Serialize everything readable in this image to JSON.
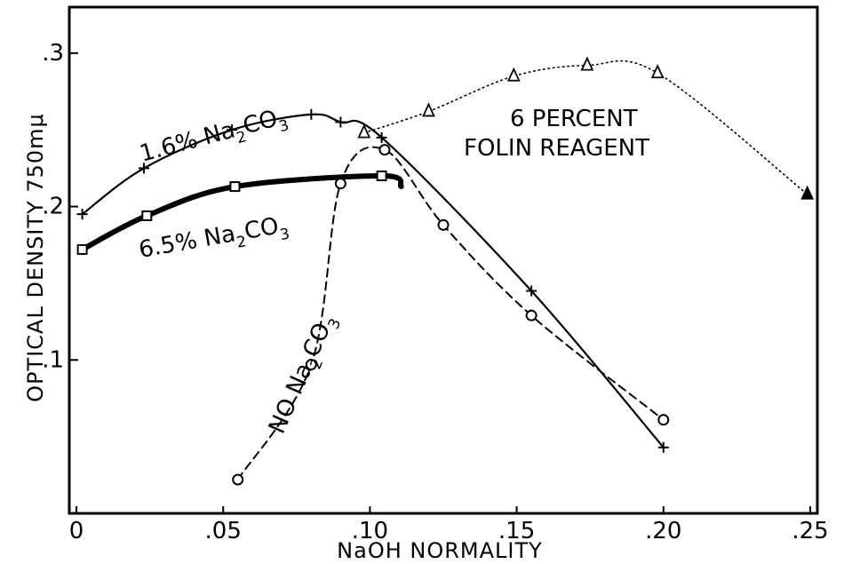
{
  "chart_data": {
    "type": "line",
    "xlabel": "NaOH NORMALITY",
    "ylabel": "OPTICAL DENSITY 750mμ",
    "xlim": [
      0,
      0.25
    ],
    "ylim": [
      0,
      0.33
    ],
    "x_ticks": [
      {
        "value": 0,
        "label": "0"
      },
      {
        "value": 0.05,
        "label": ".05"
      },
      {
        "value": 0.1,
        "label": ".10"
      },
      {
        "value": 0.15,
        "label": ".15"
      },
      {
        "value": 0.2,
        "label": ".20"
      },
      {
        "value": 0.25,
        "label": ".25"
      }
    ],
    "y_ticks": [
      {
        "value": 0.1,
        "label": ".1"
      },
      {
        "value": 0.2,
        "label": ".2"
      },
      {
        "value": 0.3,
        "label": ".3"
      }
    ],
    "grid": false,
    "series": [
      {
        "name": "1.6% Na2CO3",
        "marker": "plus",
        "line_style": "solid",
        "x": [
          0.002,
          0.023,
          0.053,
          0.08,
          0.09,
          0.104,
          0.155,
          0.2
        ],
        "y": [
          0.195,
          0.225,
          0.25,
          0.26,
          0.255,
          0.245,
          0.145,
          0.043
        ]
      },
      {
        "name": "6.5% Na2CO3",
        "marker": "square",
        "line_style": "thick",
        "x": [
          0.002,
          0.024,
          0.054,
          0.104
        ],
        "y": [
          0.172,
          0.194,
          0.213,
          0.22
        ]
      },
      {
        "name": "No Na2CO3",
        "marker": "circle",
        "line_style": "dashed",
        "x": [
          0.055,
          0.08,
          0.09,
          0.105,
          0.125,
          0.155,
          0.2
        ],
        "y": [
          0.022,
          0.097,
          0.215,
          0.237,
          0.188,
          0.129,
          0.061
        ]
      },
      {
        "name": "6 PERCENT FOLIN REAGENT",
        "marker": "triangle",
        "line_style": "dotted",
        "x": [
          0.098,
          0.12,
          0.149,
          0.174,
          0.198,
          0.249
        ],
        "y": [
          0.248,
          0.262,
          0.285,
          0.292,
          0.287,
          0.208
        ]
      }
    ],
    "annotations": [
      {
        "text_main": "1.6% Na",
        "sub": "2",
        "text_end": "CO",
        "sub_end": "3"
      },
      {
        "text_main": "6.5% Na",
        "sub": "2",
        "text_end": "CO",
        "sub_end": "3"
      },
      {
        "text_main": "NO Na",
        "sub": "2",
        "text_end": "CO",
        "sub_end": "3"
      },
      {
        "line1": "6 PERCENT",
        "line2": "FOLIN REAGENT"
      }
    ]
  }
}
